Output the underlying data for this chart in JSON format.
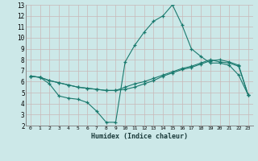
{
  "title": "",
  "xlabel": "Humidex (Indice chaleur)",
  "background_color": "#cce8e8",
  "line_color": "#1a7a6e",
  "grid_color": "#b8d8d8",
  "xlim": [
    -0.5,
    23.5
  ],
  "ylim": [
    2,
    13
  ],
  "xticks": [
    0,
    1,
    2,
    3,
    4,
    5,
    6,
    7,
    8,
    9,
    10,
    11,
    12,
    13,
    14,
    15,
    16,
    17,
    18,
    19,
    20,
    21,
    22,
    23
  ],
  "yticks": [
    2,
    3,
    4,
    5,
    6,
    7,
    8,
    9,
    10,
    11,
    12,
    13
  ],
  "series": [
    {
      "x": [
        0,
        1,
        2,
        3,
        4,
        5,
        6,
        7,
        8,
        9,
        10,
        11,
        12,
        13,
        14,
        15,
        16,
        17,
        18,
        19,
        20,
        21,
        22,
        23
      ],
      "y": [
        6.5,
        6.4,
        5.8,
        4.7,
        4.5,
        4.4,
        4.1,
        3.3,
        2.3,
        2.3,
        7.8,
        9.3,
        10.5,
        11.5,
        12.0,
        13.0,
        11.2,
        9.0,
        8.3,
        7.7,
        7.7,
        7.5,
        6.6,
        4.8
      ]
    },
    {
      "x": [
        0,
        1,
        2,
        3,
        4,
        5,
        6,
        7,
        8,
        9,
        10,
        11,
        12,
        13,
        14,
        15,
        16,
        17,
        18,
        19,
        20,
        21,
        22,
        23
      ],
      "y": [
        6.5,
        6.4,
        6.1,
        5.9,
        5.7,
        5.5,
        5.4,
        5.3,
        5.2,
        5.2,
        5.3,
        5.5,
        5.8,
        6.1,
        6.5,
        6.8,
        7.1,
        7.3,
        7.6,
        7.9,
        8.0,
        7.8,
        7.5,
        4.8
      ]
    },
    {
      "x": [
        0,
        1,
        2,
        3,
        4,
        5,
        6,
        7,
        8,
        9,
        10,
        11,
        12,
        13,
        14,
        15,
        16,
        17,
        18,
        19,
        20,
        21,
        22,
        23
      ],
      "y": [
        6.5,
        6.4,
        6.1,
        5.9,
        5.7,
        5.5,
        5.4,
        5.3,
        5.2,
        5.2,
        5.5,
        5.8,
        6.0,
        6.3,
        6.6,
        6.9,
        7.2,
        7.4,
        7.7,
        8.0,
        7.8,
        7.7,
        7.4,
        4.8
      ]
    }
  ]
}
